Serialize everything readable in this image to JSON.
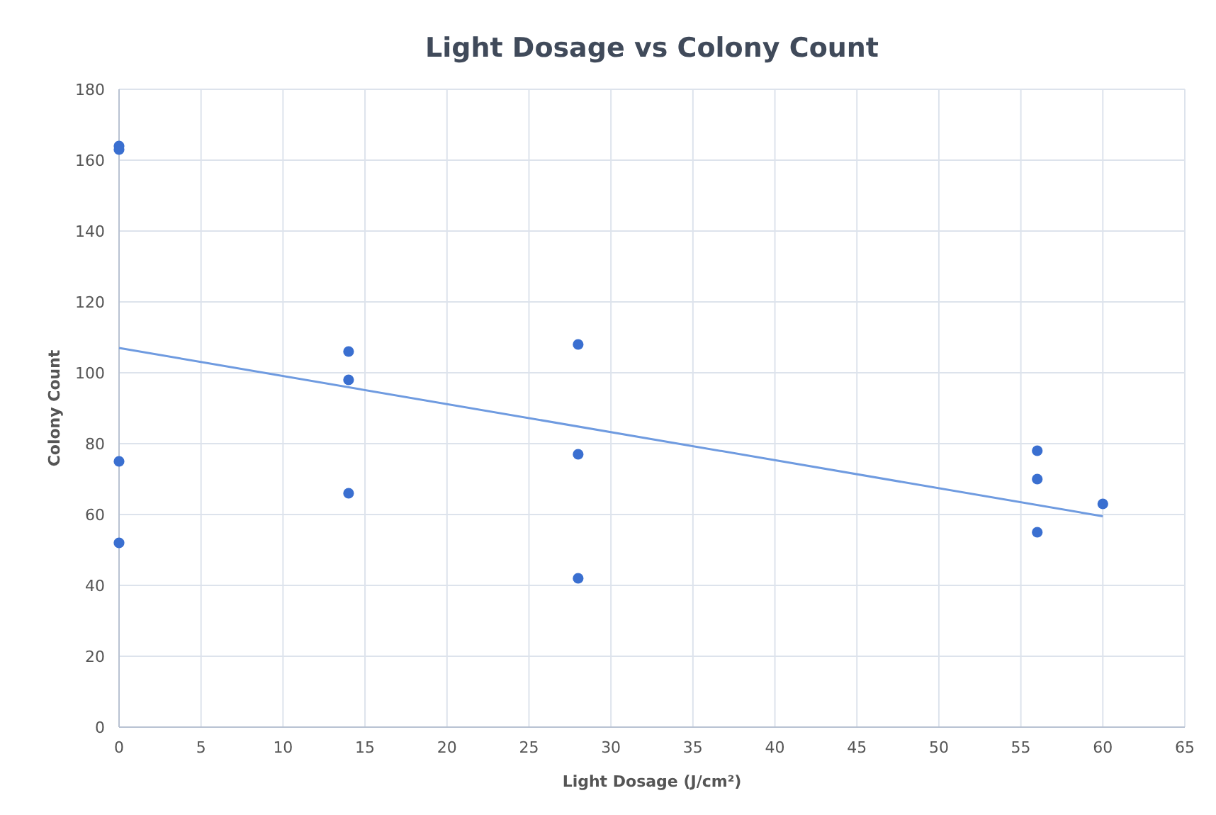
{
  "chart_data": {
    "type": "scatter",
    "title": "Light Dosage vs Colony Count",
    "xlabel": "Light Dosage (J/cm²)",
    "ylabel": "Colony Count",
    "series": [
      {
        "color": "#3a6fd0",
        "marker": "circle",
        "x": [
          0,
          0,
          0,
          0,
          14,
          14,
          14,
          28,
          28,
          28,
          56,
          56,
          56,
          60
        ],
        "values": [
          164,
          163,
          75,
          52,
          106,
          98,
          66,
          108,
          77,
          42,
          78,
          70,
          55,
          63
        ]
      },
      {
        "type": "line",
        "color": "#6f9be0",
        "x": [
          0,
          60
        ],
        "values": [
          107,
          59.5
        ]
      }
    ],
    "xlim": [
      0,
      65
    ],
    "xticks": [
      0,
      5,
      10,
      15,
      20,
      25,
      30,
      35,
      40,
      45,
      50,
      55,
      60,
      65
    ],
    "ylim": [
      0,
      180
    ],
    "yticks": [
      0,
      20,
      40,
      60,
      80,
      100,
      120,
      140,
      160,
      180
    ],
    "grid": true
  }
}
